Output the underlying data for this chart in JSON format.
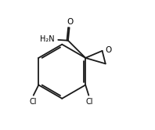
{
  "background": "#ffffff",
  "line_color": "#1a1a1a",
  "line_width": 1.3,
  "text_color": "#000000",
  "fig_width": 1.98,
  "fig_height": 1.66,
  "dpi": 100,
  "xlim": [
    0,
    10
  ],
  "ylim": [
    0,
    10
  ]
}
